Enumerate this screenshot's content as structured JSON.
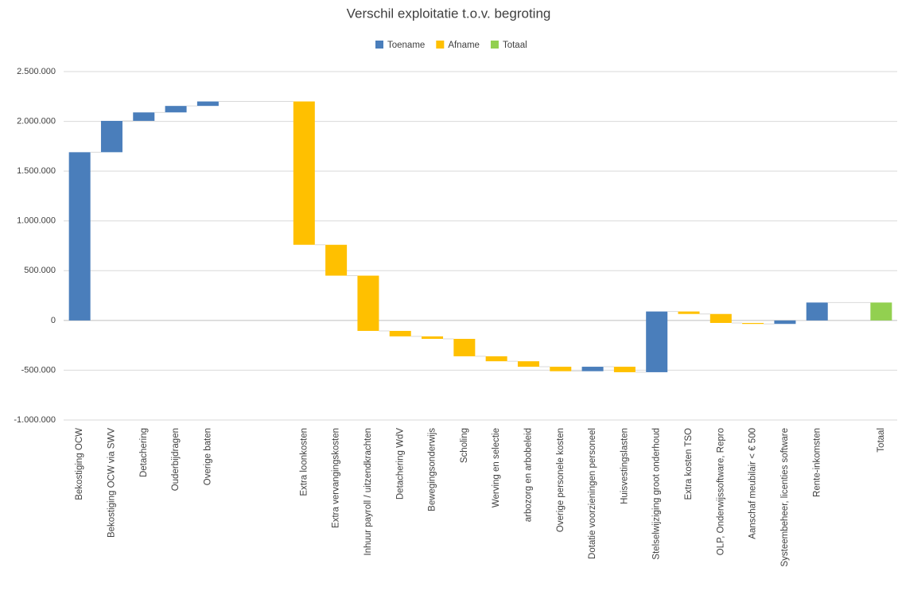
{
  "chart_data": {
    "type": "waterfall",
    "title": "Verschil exploitatie t.o.v. begroting",
    "categories": [
      "Bekostiging OCW",
      "Bekostiging OCW via SWV",
      "Detachering",
      "Ouderbijdragen",
      "Overige baten",
      null,
      null,
      "Extra loonkosten",
      "Extra vervangingskosten",
      "Inhuur payroll / uitzendkrachten",
      "Detachering WdV",
      "Bewegingsonderwijs",
      "Scholing",
      "Werving en selectie",
      "arbozorg en arbobeleid",
      "Overige personele kosten",
      "Dotatie voorzieningen personeel",
      "Huisvestingslasten",
      "Stelselwijziging groot onderhoud",
      "Extra kosten TSO",
      "OLP, Onderwijssoftware, Repro",
      "Aanschaf meubilair < € 500",
      "Systeembeheer, licenties software",
      "Rente-inkomsten",
      null,
      "Totaal"
    ],
    "series": [
      {
        "name": "Toename",
        "color": "#4a7ebb",
        "values": [
          1690000,
          315000,
          85000,
          65000,
          45000,
          null,
          null,
          null,
          null,
          null,
          null,
          null,
          null,
          null,
          null,
          null,
          45000,
          null,
          610000,
          null,
          null,
          null,
          35000,
          180000,
          null,
          null
        ]
      },
      {
        "name": "Afname",
        "color": "#ffc000",
        "values": [
          null,
          null,
          null,
          null,
          null,
          null,
          null,
          -1440000,
          -310000,
          -555000,
          -55000,
          -25000,
          -175000,
          -50000,
          -55000,
          -45000,
          null,
          -55000,
          null,
          -25000,
          -90000,
          -10000,
          null,
          null,
          null,
          null
        ]
      },
      {
        "name": "Totaal",
        "color": "#92d050",
        "values": [
          null,
          null,
          null,
          null,
          null,
          null,
          null,
          null,
          null,
          null,
          null,
          null,
          null,
          null,
          null,
          null,
          null,
          null,
          null,
          null,
          null,
          null,
          null,
          null,
          null,
          180000
        ]
      }
    ],
    "ylim": [
      -1000000,
      2500000
    ],
    "yticks": [
      {
        "value": -1000000,
        "label": "-1.000.000"
      },
      {
        "value": -500000,
        "label": "-500.000"
      },
      0,
      {
        "value": 500000,
        "label": "500.000"
      },
      {
        "value": 1000000,
        "label": "1.000.000"
      },
      {
        "value": 1500000,
        "label": "1.500.000"
      },
      {
        "value": 2000000,
        "label": "2.000.000"
      },
      {
        "value": 2500000,
        "label": "2.500.000"
      }
    ],
    "grid": true
  }
}
